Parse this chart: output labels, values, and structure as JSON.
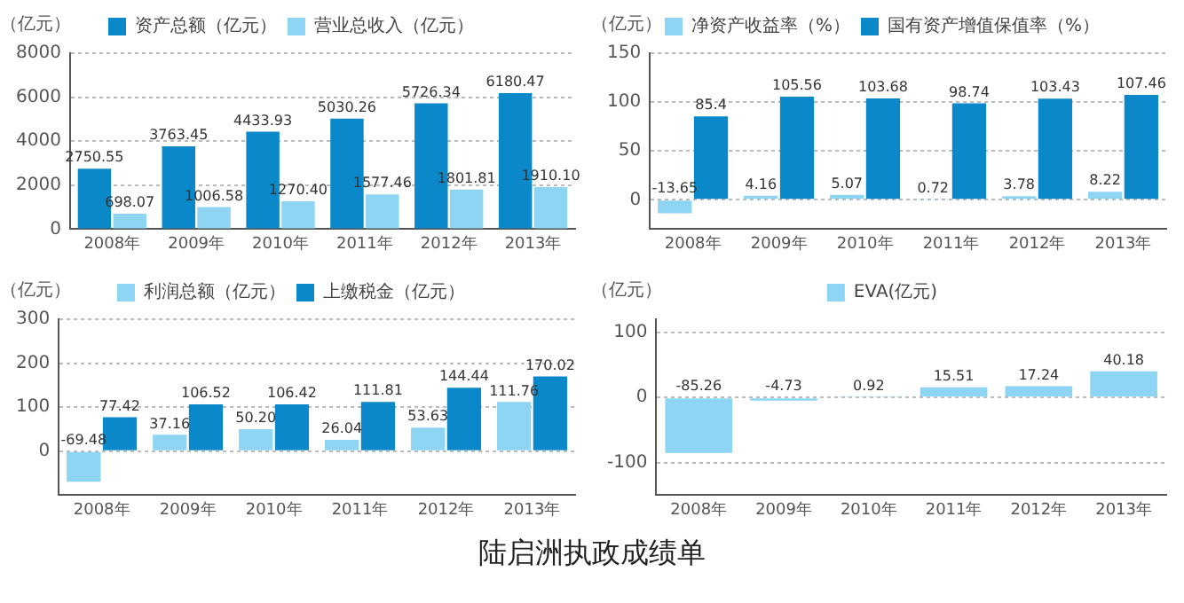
{
  "chart_data": [
    {
      "type": "bar",
      "ylabel": "（亿元）",
      "categories": [
        "2008年",
        "2009年",
        "2010年",
        "2011年",
        "2012年",
        "2013年"
      ],
      "ylim": [
        0,
        8000
      ],
      "yticks": [
        0,
        2000,
        4000,
        6000,
        8000
      ],
      "grid": "y",
      "legend": "top",
      "series": [
        {
          "name": "资产总额（亿元）",
          "color": "#0a88c9",
          "values": [
            2750.55,
            3763.45,
            4433.93,
            5030.26,
            5726.34,
            6180.47
          ],
          "value_labels": [
            "2750.55",
            "3763.45",
            "4433.93",
            "5030.26",
            "5726.34",
            "6180.47"
          ]
        },
        {
          "name": "营业总收入（亿元）",
          "color": "#8ed4f3",
          "values": [
            698.07,
            1006.58,
            1270.4,
            1577.46,
            1801.81,
            1910.1
          ],
          "value_labels": [
            "698.07",
            "1006.58",
            "1270.40",
            "1577.46",
            "1801.81",
            "1910.10"
          ]
        }
      ]
    },
    {
      "type": "bar",
      "ylabel": "（亿元）",
      "categories": [
        "2008年",
        "2009年",
        "2010年",
        "2011年",
        "2012年",
        "2013年"
      ],
      "ylim": [
        -30,
        150
      ],
      "yticks": [
        0,
        50,
        100,
        150
      ],
      "grid": "y",
      "legend": "top",
      "series": [
        {
          "name": "净资产收益率（%）",
          "color": "#8ed4f3",
          "values": [
            -13.65,
            4.16,
            5.07,
            0.72,
            3.78,
            8.22
          ],
          "value_labels": [
            "-13.65",
            "4.16",
            "5.07",
            "0.72",
            "3.78",
            "8.22"
          ]
        },
        {
          "name": "国有资产增值保值率（%）",
          "color": "#0a88c9",
          "values": [
            85.4,
            105.56,
            103.68,
            98.74,
            103.43,
            107.46
          ],
          "value_labels": [
            "85.4",
            "105.56",
            "103.68",
            "98.74",
            "103.43",
            "107.46"
          ]
        }
      ]
    },
    {
      "type": "bar",
      "ylabel": "（亿元）",
      "categories": [
        "2008年",
        "2009年",
        "2010年",
        "2011年",
        "2012年",
        "2013年"
      ],
      "ylim": [
        -100,
        300
      ],
      "yticks": [
        0,
        100,
        200,
        300
      ],
      "grid": "y",
      "legend": "top",
      "series": [
        {
          "name": "利润总额（亿元）",
          "color": "#8ed4f3",
          "values": [
            -69.48,
            37.16,
            50.2,
            26.04,
            53.63,
            111.76
          ],
          "value_labels": [
            "-69.48",
            "37.16",
            "50.20",
            "26.04",
            "53.63",
            "111.76"
          ]
        },
        {
          "name": "上缴税金（亿元）",
          "color": "#0a88c9",
          "values": [
            77.42,
            106.52,
            106.42,
            111.81,
            144.44,
            170.02
          ],
          "value_labels": [
            "77.42",
            "106.52",
            "106.42",
            "111.81",
            "144.44",
            "170.02"
          ]
        }
      ]
    },
    {
      "type": "bar",
      "ylabel": "（亿元）",
      "categories": [
        "2008年",
        "2009年",
        "2010年",
        "2011年",
        "2012年",
        "2013年"
      ],
      "ylim": [
        -150,
        120
      ],
      "yticks": [
        -100,
        0,
        100
      ],
      "grid": "y",
      "legend": "top",
      "annotations": [
        "陆启洲执政成绩单"
      ],
      "series": [
        {
          "name": "EVA(亿元)",
          "color": "#8ed4f3",
          "values": [
            -85.26,
            -4.73,
            0.92,
            15.51,
            17.24,
            40.18
          ],
          "value_labels": [
            "-85.26",
            "-4.73",
            "0.92",
            "15.51",
            "17.24",
            "40.18"
          ]
        }
      ]
    }
  ]
}
